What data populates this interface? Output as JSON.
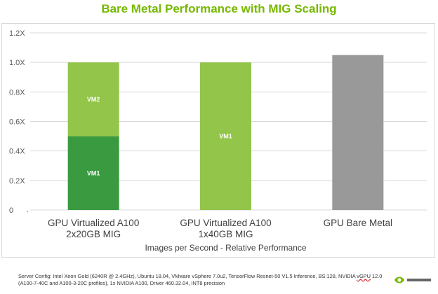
{
  "chart_data": {
    "type": "bar",
    "stacked": true,
    "title": "Bare Metal Performance with MIG Scaling",
    "xlabel": "Images per Second - Relative Performance",
    "ylabel": "",
    "ylim": [
      0,
      1.2
    ],
    "yticks": [
      {
        "value": 0,
        "label": "0"
      },
      {
        "value": 0.2,
        "label": "0.2X"
      },
      {
        "value": 0.4,
        "label": "0.4X"
      },
      {
        "value": 0.6,
        "label": "0.6X"
      },
      {
        "value": 0.8,
        "label": "0.8X"
      },
      {
        "value": 1.0,
        "label": "1.0X"
      },
      {
        "value": 1.2,
        "label": "1.2X"
      }
    ],
    "grid": true,
    "legend": "none",
    "categories": [
      {
        "lines": [
          "GPU Virtualized A100",
          "2x20GB MIG"
        ]
      },
      {
        "lines": [
          "GPU Virtualized A100",
          "1x40GB MIG"
        ]
      },
      {
        "lines": [
          "GPU Bare Metal"
        ]
      }
    ],
    "bars": [
      {
        "segments": [
          {
            "label": "VM1",
            "value": 0.5,
            "color": "#3a9a3f"
          },
          {
            "label": "VM2",
            "value": 0.5,
            "color": "#92c54a"
          }
        ]
      },
      {
        "segments": [
          {
            "label": "VM1",
            "value": 1.0,
            "color": "#92c54a"
          }
        ]
      },
      {
        "segments": [
          {
            "label": "",
            "value": 1.05,
            "color": "#999999"
          }
        ]
      }
    ]
  },
  "footnote": {
    "part1": "Server Config: Intel Xeon Gold (6240R @ 2.4GHz), Ubuntu 18.04, VMware vSphere 7.0u2, TensorFlow Resnet-50 V1.5 Inference, BS:128, NVIDIA ",
    "spell": "vGPU",
    "part2": " 12.0 (A100-7-40C and A100-3-20C profiles), 1x NVIDIA A100, Driver 460.32.04, INT8 precision"
  },
  "logo": {
    "name": "nvidia-logo",
    "color": "#76b900"
  }
}
